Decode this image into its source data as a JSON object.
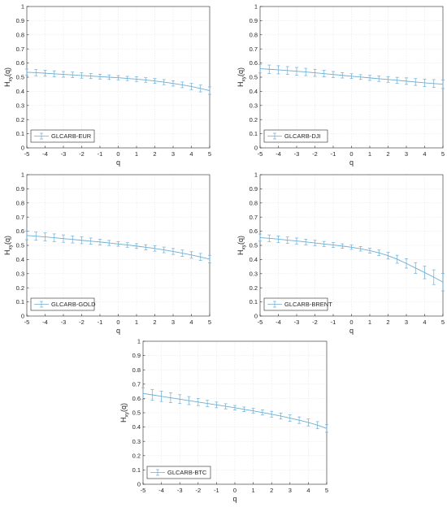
{
  "colors": {
    "series": "#6baed6",
    "grid": "#e6e6e6",
    "axis": "#262626"
  },
  "chart_data": [
    {
      "type": "line",
      "xlabel": "q",
      "ylabel": "H_xy(q)",
      "xlim": [
        -5,
        5
      ],
      "ylim": [
        0,
        1
      ],
      "xticks": [
        -5,
        -4,
        -3,
        -2,
        -1,
        0,
        1,
        2,
        3,
        4,
        5
      ],
      "yticks": [
        0,
        0.1,
        0.2,
        0.3,
        0.4,
        0.5,
        0.6,
        0.7,
        0.8,
        0.9,
        1
      ],
      "grid": true,
      "legend": "bottom-left",
      "series": [
        {
          "name": "GLCARB-EUR",
          "x": [
            -5,
            -4.5,
            -4,
            -3.5,
            -3,
            -2.5,
            -2,
            -1.5,
            -1,
            -0.5,
            0,
            0.5,
            1,
            1.5,
            2,
            2.5,
            3,
            3.5,
            4,
            4.5,
            5
          ],
          "y": [
            0.535,
            0.532,
            0.528,
            0.524,
            0.52,
            0.516,
            0.512,
            0.508,
            0.504,
            0.5,
            0.496,
            0.491,
            0.486,
            0.48,
            0.473,
            0.465,
            0.456,
            0.446,
            0.434,
            0.42,
            0.405
          ],
          "err": [
            0.022,
            0.022,
            0.021,
            0.021,
            0.02,
            0.02,
            0.019,
            0.018,
            0.017,
            0.016,
            0.015,
            0.015,
            0.016,
            0.016,
            0.017,
            0.018,
            0.019,
            0.02,
            0.022,
            0.024,
            0.026
          ]
        }
      ]
    },
    {
      "type": "line",
      "xlabel": "q",
      "ylabel": "H_xy(q)",
      "xlim": [
        -5,
        5
      ],
      "ylim": [
        0,
        1
      ],
      "xticks": [
        -5,
        -4,
        -3,
        -2,
        -1,
        0,
        1,
        2,
        3,
        4,
        5
      ],
      "yticks": [
        0,
        0.1,
        0.2,
        0.3,
        0.4,
        0.5,
        0.6,
        0.7,
        0.8,
        0.9,
        1
      ],
      "grid": true,
      "legend": "bottom-left",
      "series": [
        {
          "name": "GLCARB-DJI",
          "x": [
            -5,
            -4.5,
            -4,
            -3.5,
            -3,
            -2.5,
            -2,
            -1.5,
            -1,
            -0.5,
            0,
            0.5,
            1,
            1.5,
            2,
            2.5,
            3,
            3.5,
            4,
            4.5,
            5
          ],
          "y": [
            0.56,
            0.556,
            0.552,
            0.547,
            0.542,
            0.537,
            0.531,
            0.525,
            0.519,
            0.513,
            0.507,
            0.501,
            0.495,
            0.489,
            0.484,
            0.478,
            0.472,
            0.466,
            0.46,
            0.455,
            0.45
          ],
          "err": [
            0.03,
            0.03,
            0.029,
            0.028,
            0.027,
            0.026,
            0.025,
            0.023,
            0.021,
            0.019,
            0.017,
            0.017,
            0.018,
            0.019,
            0.02,
            0.021,
            0.023,
            0.024,
            0.026,
            0.028,
            0.03
          ]
        }
      ]
    },
    {
      "type": "line",
      "xlabel": "q",
      "ylabel": "H_xy(q)",
      "xlim": [
        -5,
        5
      ],
      "ylim": [
        0,
        1
      ],
      "xticks": [
        -5,
        -4,
        -3,
        -2,
        -1,
        0,
        1,
        2,
        3,
        4,
        5
      ],
      "yticks": [
        0,
        0.1,
        0.2,
        0.3,
        0.4,
        0.5,
        0.6,
        0.7,
        0.8,
        0.9,
        1
      ],
      "grid": true,
      "legend": "bottom-left",
      "series": [
        {
          "name": "GLCARB-GOLD",
          "x": [
            -5,
            -4.5,
            -4,
            -3.5,
            -3,
            -2.5,
            -2,
            -1.5,
            -1,
            -0.5,
            0,
            0.5,
            1,
            1.5,
            2,
            2.5,
            3,
            3.5,
            4,
            4.5,
            5
          ],
          "y": [
            0.57,
            0.565,
            0.56,
            0.554,
            0.548,
            0.542,
            0.536,
            0.53,
            0.524,
            0.517,
            0.51,
            0.503,
            0.495,
            0.487,
            0.478,
            0.468,
            0.457,
            0.445,
            0.432,
            0.418,
            0.403
          ],
          "err": [
            0.03,
            0.029,
            0.028,
            0.027,
            0.026,
            0.025,
            0.024,
            0.022,
            0.02,
            0.018,
            0.016,
            0.016,
            0.017,
            0.018,
            0.019,
            0.02,
            0.021,
            0.022,
            0.023,
            0.025,
            0.027
          ]
        }
      ]
    },
    {
      "type": "line",
      "xlabel": "q",
      "ylabel": "H_xy(q)",
      "xlim": [
        -5,
        5
      ],
      "ylim": [
        0,
        1
      ],
      "xticks": [
        -5,
        -4,
        -3,
        -2,
        -1,
        0,
        1,
        2,
        3,
        4,
        5
      ],
      "yticks": [
        0,
        0.1,
        0.2,
        0.3,
        0.4,
        0.5,
        0.6,
        0.7,
        0.8,
        0.9,
        1
      ],
      "grid": true,
      "legend": "bottom-left",
      "series": [
        {
          "name": "GLCARB-BRENT",
          "x": [
            -5,
            -4.5,
            -4,
            -3.5,
            -3,
            -2.5,
            -2,
            -1.5,
            -1,
            -0.5,
            0,
            0.5,
            1,
            1.5,
            2,
            2.5,
            3,
            3.5,
            4,
            4.5,
            5
          ],
          "y": [
            0.555,
            0.55,
            0.544,
            0.537,
            0.531,
            0.524,
            0.517,
            0.51,
            0.503,
            0.495,
            0.487,
            0.476,
            0.463,
            0.447,
            0.427,
            0.402,
            0.372,
            0.34,
            0.308,
            0.275,
            0.24
          ],
          "err": [
            0.025,
            0.024,
            0.023,
            0.022,
            0.021,
            0.02,
            0.019,
            0.018,
            0.017,
            0.016,
            0.015,
            0.016,
            0.018,
            0.02,
            0.024,
            0.028,
            0.033,
            0.038,
            0.044,
            0.052,
            0.062
          ]
        }
      ]
    },
    {
      "type": "line",
      "xlabel": "q",
      "ylabel": "H_xy(q)",
      "xlim": [
        -5,
        5
      ],
      "ylim": [
        0,
        1
      ],
      "xticks": [
        -5,
        -4,
        -3,
        -2,
        -1,
        0,
        1,
        2,
        3,
        4,
        5
      ],
      "yticks": [
        0,
        0.1,
        0.2,
        0.3,
        0.4,
        0.5,
        0.6,
        0.7,
        0.8,
        0.9,
        1
      ],
      "grid": true,
      "legend": "bottom-left",
      "series": [
        {
          "name": "GLCARB-BTC",
          "x": [
            -5,
            -4.5,
            -4,
            -3.5,
            -3,
            -2.5,
            -2,
            -1.5,
            -1,
            -0.5,
            0,
            0.5,
            1,
            1.5,
            2,
            2.5,
            3,
            3.5,
            4,
            4.5,
            5
          ],
          "y": [
            0.635,
            0.625,
            0.615,
            0.605,
            0.595,
            0.585,
            0.575,
            0.565,
            0.555,
            0.545,
            0.535,
            0.524,
            0.513,
            0.502,
            0.49,
            0.477,
            0.463,
            0.448,
            0.432,
            0.413,
            0.39
          ],
          "err": [
            0.04,
            0.038,
            0.036,
            0.034,
            0.031,
            0.028,
            0.025,
            0.022,
            0.02,
            0.018,
            0.016,
            0.016,
            0.017,
            0.018,
            0.02,
            0.021,
            0.022,
            0.023,
            0.024,
            0.025,
            0.026
          ]
        }
      ]
    }
  ]
}
